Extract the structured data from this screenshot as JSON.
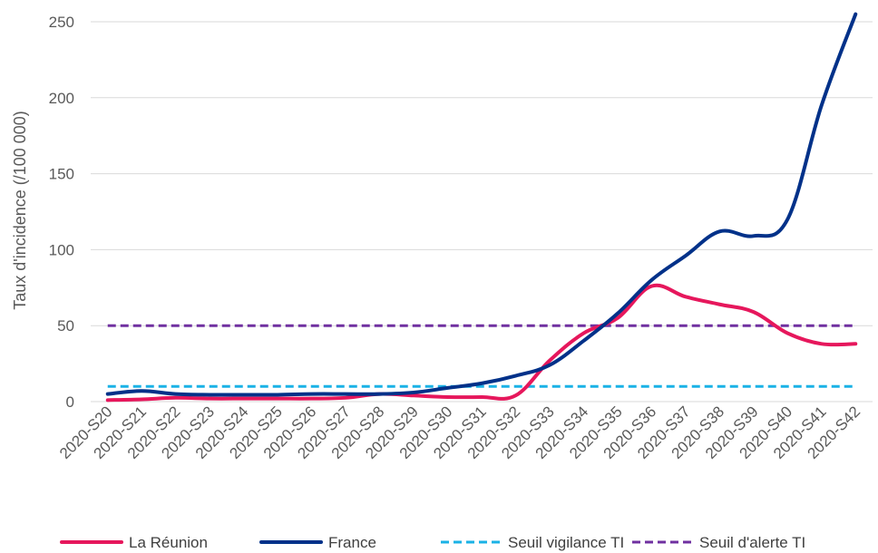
{
  "chart_data": {
    "type": "line",
    "title": "",
    "xlabel": "",
    "ylabel": "Taux d'incidence (/100 000)",
    "ylim": [
      0,
      250
    ],
    "yticks": [
      "0",
      "50",
      "100",
      "150",
      "200",
      "250"
    ],
    "grid": true,
    "legend_position": "bottom",
    "categories": [
      "2020-S20",
      "2020-S21",
      "2020-S22",
      "2020-S23",
      "2020-S24",
      "2020-S25",
      "2020-S26",
      "2020-S27",
      "2020-S28",
      "2020-S29",
      "2020-S30",
      "2020-S31",
      "2020-S32",
      "2020-S33",
      "2020-S34",
      "2020-S35",
      "2020-S36",
      "2020-S37",
      "2020-S38",
      "2020-S39",
      "2020-S40",
      "2020-S41",
      "2020-S42"
    ],
    "series": [
      {
        "name": "La Réunion",
        "color": "#e6175c",
        "style": "solid",
        "values": [
          1,
          1.5,
          2.5,
          2,
          2,
          2,
          2,
          2.5,
          5,
          4,
          3,
          3,
          4,
          27,
          45,
          55,
          76,
          69,
          64,
          59,
          45,
          38,
          38
        ]
      },
      {
        "name": "France",
        "color": "#003189",
        "style": "solid",
        "values": [
          5,
          7,
          5,
          4.5,
          4.5,
          4.5,
          5,
          5,
          5,
          6,
          9,
          12,
          17,
          24,
          40,
          58,
          80,
          96,
          112,
          109,
          120,
          195,
          255
        ]
      },
      {
        "name": "Seuil vigilance TI",
        "color": "#1ab2e6",
        "style": "dashed",
        "values": [
          10,
          10,
          10,
          10,
          10,
          10,
          10,
          10,
          10,
          10,
          10,
          10,
          10,
          10,
          10,
          10,
          10,
          10,
          10,
          10,
          10,
          10,
          10
        ]
      },
      {
        "name": "Seuil d'alerte TI",
        "color": "#7030a0",
        "style": "dashed",
        "values": [
          50,
          50,
          50,
          50,
          50,
          50,
          50,
          50,
          50,
          50,
          50,
          50,
          50,
          50,
          50,
          50,
          50,
          50,
          50,
          50,
          50,
          50,
          50
        ]
      }
    ]
  }
}
